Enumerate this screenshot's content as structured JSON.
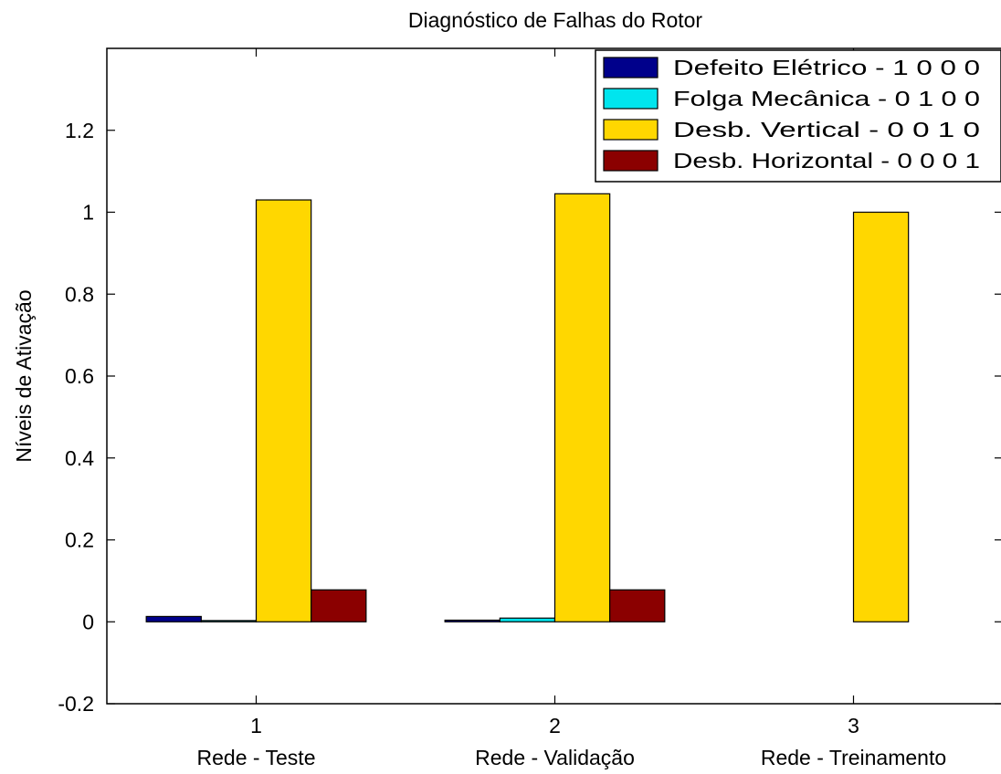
{
  "chart_data": {
    "type": "bar",
    "title": "Diagnóstico de Falhas do Rotor",
    "ylabel": "Níveis de Ativação",
    "xlabel": "",
    "ylim": [
      -0.2,
      1.4
    ],
    "yticks": [
      -0.2,
      0,
      0.2,
      0.4,
      0.6,
      0.8,
      1,
      1.2
    ],
    "ytick_labels": [
      "-0.2",
      "0",
      "0.2",
      "0.4",
      "0.6",
      "0.8",
      "1",
      "1.2"
    ],
    "x": [
      1,
      2,
      3
    ],
    "tick_labels": [
      "1",
      "2",
      "3"
    ],
    "categories": [
      "Rede - Teste",
      "Rede - Validação",
      "Rede - Treinamento"
    ],
    "legend_position": "top-right",
    "grid": false,
    "series": [
      {
        "name": "Defeito Elétrico - 1 0 0 0",
        "color": "#00008b",
        "values": [
          0.013,
          0.004,
          0.0
        ]
      },
      {
        "name": "Folga Mecânica - 0 1 0 0",
        "color": "#00e5ee",
        "values": [
          0.003,
          0.009,
          0.0
        ]
      },
      {
        "name": "Desb. Vertical - 0 0 1 0",
        "color": "#ffd700",
        "values": [
          1.03,
          1.045,
          1.0
        ]
      },
      {
        "name": "Desb. Horizontal - 0 0 0 1",
        "color": "#8b0000",
        "values": [
          0.078,
          0.078,
          0.0
        ]
      }
    ]
  }
}
